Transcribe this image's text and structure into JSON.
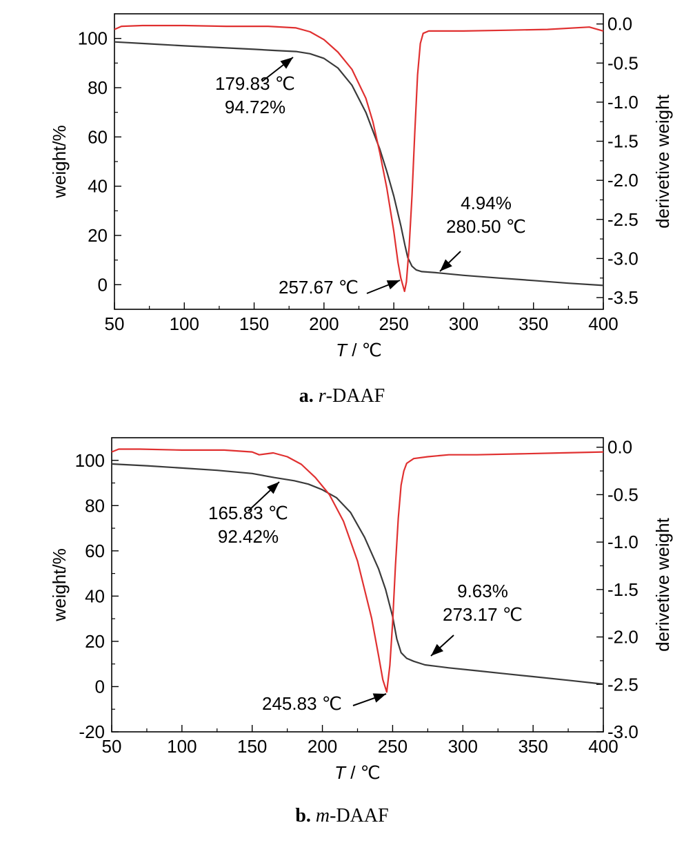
{
  "chart_data": [
    {
      "type": "line",
      "caption": {
        "letter": "a.",
        "name_italic": "r",
        "name_rest": "-DAAF"
      },
      "xlabel": {
        "italic": "T",
        "rest": " / ℃"
      },
      "ylabel": "weight/%",
      "y2label": "derivetive weight",
      "xlim": [
        50,
        400
      ],
      "ylim": [
        -10,
        110
      ],
      "y2lim": [
        -3.65,
        0.13
      ],
      "xticks": [
        50,
        100,
        150,
        200,
        250,
        300,
        350,
        400
      ],
      "yticks": [
        0,
        20,
        40,
        60,
        80,
        100
      ],
      "y2ticks": [
        0.0,
        -0.5,
        -1.0,
        -1.5,
        -2.0,
        -2.5,
        -3.0,
        -3.5
      ],
      "xtick_labels": [
        "50",
        "100",
        "150",
        "200",
        "250",
        "300",
        "350",
        "400"
      ],
      "ytick_labels": [
        "0",
        "20",
        "40",
        "60",
        "80",
        "100"
      ],
      "y2tick_labels": [
        "0.0",
        "-0.5",
        "-1.0",
        "-1.5",
        "-2.0",
        "-2.5",
        "-3.0",
        "-3.5"
      ],
      "series": [
        {
          "axis": "left",
          "color": "#3a3a3a",
          "x": [
            50,
            75,
            100,
            125,
            150,
            165,
            180,
            190,
            200,
            210,
            220,
            230,
            240,
            245,
            250,
            255,
            258,
            260,
            263,
            266,
            270,
            280,
            300,
            325,
            350,
            375,
            400
          ],
          "y": [
            98.6,
            97.8,
            97.0,
            96.3,
            95.6,
            95.1,
            94.7,
            93.8,
            91.9,
            88.0,
            81.0,
            70.0,
            55.0,
            46.0,
            36.0,
            24.0,
            16.0,
            11.0,
            7.5,
            6.0,
            5.3,
            4.9,
            3.8,
            2.7,
            1.7,
            0.6,
            -0.3
          ]
        },
        {
          "axis": "right",
          "color": "#e03030",
          "x": [
            50,
            55,
            70,
            100,
            130,
            160,
            180,
            190,
            200,
            210,
            220,
            230,
            235,
            240,
            245,
            250,
            253,
            255,
            257.7,
            259,
            261,
            263,
            265,
            267,
            269,
            271,
            275,
            285,
            300,
            330,
            360,
            390,
            400
          ],
          "y": [
            -0.07,
            -0.03,
            -0.02,
            -0.02,
            -0.03,
            -0.03,
            -0.05,
            -0.1,
            -0.2,
            -0.36,
            -0.58,
            -0.95,
            -1.25,
            -1.65,
            -2.1,
            -2.65,
            -3.05,
            -3.25,
            -3.42,
            -3.3,
            -2.85,
            -2.2,
            -1.4,
            -0.65,
            -0.25,
            -0.12,
            -0.09,
            -0.09,
            -0.09,
            -0.08,
            -0.07,
            -0.04,
            -0.09
          ]
        }
      ],
      "annotations": [
        {
          "lines": [
            "179.83 ℃",
            "94.72%"
          ]
        },
        {
          "lines": [
            "4.94%",
            "280.50 ℃"
          ]
        },
        {
          "lines": [
            "257.67 ℃"
          ]
        }
      ]
    },
    {
      "type": "line",
      "caption": {
        "letter": "b.",
        "name_italic": "m",
        "name_rest": "-DAAF"
      },
      "xlabel": {
        "italic": "T",
        "rest": " / ℃"
      },
      "ylabel": "weight/%",
      "y2label": "derivetive weight",
      "xlim": [
        50,
        400
      ],
      "ylim": [
        -20,
        110
      ],
      "y2lim": [
        -3.0,
        0.1
      ],
      "xticks": [
        50,
        100,
        150,
        200,
        250,
        300,
        350,
        400
      ],
      "yticks": [
        -20,
        0,
        20,
        40,
        60,
        80,
        100
      ],
      "y2ticks": [
        0.0,
        -0.5,
        -1.0,
        -1.5,
        -2.0,
        -2.5,
        -3.0
      ],
      "xtick_labels": [
        "50",
        "100",
        "150",
        "200",
        "250",
        "300",
        "350",
        "400"
      ],
      "ytick_labels": [
        "-20",
        "0",
        "20",
        "40",
        "60",
        "80",
        "100"
      ],
      "y2tick_labels": [
        "0.0",
        "-0.5",
        "-1.0",
        "-1.5",
        "-2.0",
        "-2.5",
        "-3.0"
      ],
      "series": [
        {
          "axis": "left",
          "color": "#3a3a3a",
          "x": [
            50,
            75,
            100,
            125,
            150,
            165.8,
            180,
            190,
            200,
            210,
            220,
            230,
            240,
            245,
            250,
            253,
            256,
            260,
            265,
            273,
            290,
            310,
            330,
            350,
            375,
            400
          ],
          "y": [
            98.4,
            97.6,
            96.6,
            95.6,
            94.2,
            92.4,
            91.0,
            89.5,
            87.0,
            83.5,
            77.0,
            66.0,
            52.0,
            43.0,
            31.0,
            21.0,
            15.0,
            12.5,
            11.2,
            9.6,
            8.3,
            7.0,
            5.7,
            4.4,
            2.8,
            1.1
          ]
        },
        {
          "axis": "right",
          "color": "#e03030",
          "x": [
            50,
            55,
            70,
            100,
            130,
            150,
            155,
            165,
            175,
            185,
            195,
            205,
            215,
            225,
            235,
            240,
            243,
            245.8,
            248,
            250,
            252,
            254,
            256,
            258,
            260,
            265,
            275,
            290,
            310,
            340,
            370,
            400
          ],
          "y": [
            -0.05,
            -0.02,
            -0.02,
            -0.03,
            -0.03,
            -0.05,
            -0.08,
            -0.06,
            -0.1,
            -0.18,
            -0.32,
            -0.5,
            -0.78,
            -1.2,
            -1.8,
            -2.2,
            -2.45,
            -2.58,
            -2.3,
            -1.85,
            -1.25,
            -0.75,
            -0.4,
            -0.25,
            -0.17,
            -0.12,
            -0.1,
            -0.08,
            -0.08,
            -0.07,
            -0.06,
            -0.05
          ]
        }
      ],
      "annotations": [
        {
          "lines": [
            "165.83 ℃",
            "92.42%"
          ]
        },
        {
          "lines": [
            "9.63%",
            "273.17 ℃"
          ]
        },
        {
          "lines": [
            "245.83 ℃"
          ]
        }
      ]
    }
  ]
}
